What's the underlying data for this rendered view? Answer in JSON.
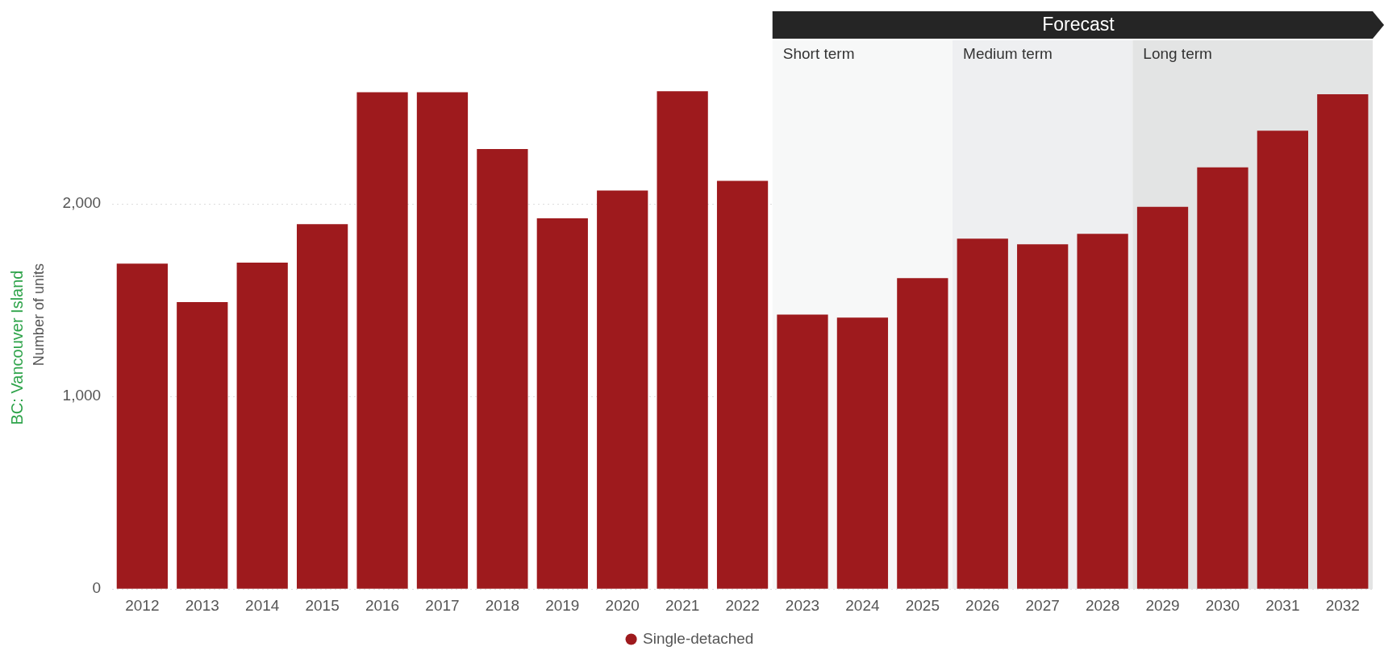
{
  "chart_data": {
    "type": "bar",
    "title": "BC: Vancouver Island",
    "ylabel": "Number of units",
    "categories": [
      "2012",
      "2013",
      "2014",
      "2015",
      "2016",
      "2017",
      "2018",
      "2019",
      "2020",
      "2021",
      "2022",
      "2023",
      "2024",
      "2025",
      "2026",
      "2027",
      "2028",
      "2029",
      "2030",
      "2031",
      "2032"
    ],
    "series": [
      {
        "name": "Single-detached",
        "color": "#9e1a1d",
        "values": [
          1690,
          1490,
          1695,
          1895,
          2580,
          2580,
          2285,
          1925,
          2070,
          2585,
          2120,
          1425,
          1410,
          1615,
          1820,
          1790,
          1845,
          1985,
          2190,
          2380,
          2570
        ]
      }
    ],
    "ylim": [
      0,
      2850
    ],
    "yticks": [
      {
        "value": 0,
        "label": "0"
      },
      {
        "value": 1000,
        "label": "1,000"
      },
      {
        "value": 2000,
        "label": "2,000"
      }
    ],
    "grid": "y",
    "legend": "bottom",
    "marker": "circle",
    "bands": [
      {
        "axis": "x",
        "from": "2023",
        "to": "2025",
        "label": "Short term",
        "color": "#f7f8f8"
      },
      {
        "axis": "x",
        "from": "2026",
        "to": "2028",
        "label": "Medium term",
        "color": "#eeeff1"
      },
      {
        "axis": "x",
        "from": "2029",
        "to": "2032",
        "label": "Long term",
        "color": "#e3e4e4"
      }
    ],
    "annotations": [
      "Forecast"
    ]
  }
}
